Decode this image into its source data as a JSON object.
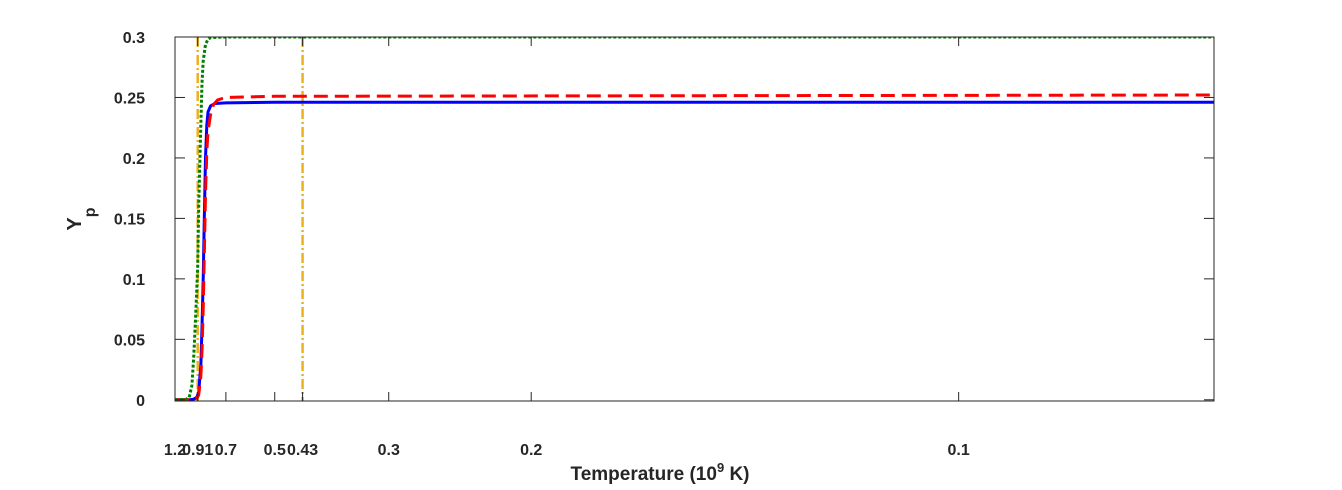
{
  "chart_data": {
    "type": "line",
    "xlabel": {
      "prefix": "Temperature (10",
      "sup": "9",
      "suffix": " K)"
    },
    "ylabel": {
      "main": "Y",
      "sub": "p"
    },
    "x_axis_scale": "reciprocal (axis increases with 1/T; tick labels show T)",
    "x_range_T": [
      1.2,
      0.077
    ],
    "ylim": [
      -0.001,
      0.3
    ],
    "x_ticks": [
      "1.2",
      "0.91",
      "0.7",
      "0.5",
      "0.43",
      "0.3",
      "0.2",
      "0.1"
    ],
    "y_ticks": [
      "0",
      "0.05",
      "0.1",
      "0.15",
      "0.2",
      "0.25",
      "0.3"
    ],
    "grid": false,
    "legend": "none",
    "series": [
      {
        "style": "solid",
        "color": "#0000ff",
        "points": [
          [
            1.2,
            0
          ],
          [
            1.0,
            0
          ],
          [
            0.95,
            0.0005
          ],
          [
            0.92,
            0.002
          ],
          [
            0.9,
            0.006
          ],
          [
            0.88,
            0.03
          ],
          [
            0.87,
            0.06
          ],
          [
            0.86,
            0.1
          ],
          [
            0.85,
            0.15
          ],
          [
            0.84,
            0.2
          ],
          [
            0.83,
            0.227
          ],
          [
            0.82,
            0.238
          ],
          [
            0.8,
            0.243
          ],
          [
            0.77,
            0.245
          ],
          [
            0.7,
            0.2455
          ],
          [
            0.5,
            0.246
          ],
          [
            0.077,
            0.246
          ]
        ]
      },
      {
        "style": "dashed",
        "color": "#ff0000",
        "points": [
          [
            1.2,
            0
          ],
          [
            1.0,
            0
          ],
          [
            0.95,
            0.0003
          ],
          [
            0.92,
            0.001
          ],
          [
            0.9,
            0.004
          ],
          [
            0.88,
            0.02
          ],
          [
            0.87,
            0.04
          ],
          [
            0.86,
            0.075
          ],
          [
            0.85,
            0.12
          ],
          [
            0.84,
            0.17
          ],
          [
            0.83,
            0.205
          ],
          [
            0.82,
            0.222
          ],
          [
            0.8,
            0.236
          ],
          [
            0.78,
            0.244
          ],
          [
            0.75,
            0.248
          ],
          [
            0.7,
            0.25
          ],
          [
            0.5,
            0.251
          ],
          [
            0.077,
            0.252
          ]
        ]
      },
      {
        "style": "dotted",
        "color": "#008000",
        "points": [
          [
            1.2,
            0
          ],
          [
            1.05,
            0
          ],
          [
            1.0,
            0.002
          ],
          [
            0.97,
            0.012
          ],
          [
            0.95,
            0.035
          ],
          [
            0.93,
            0.07
          ],
          [
            0.91,
            0.11
          ],
          [
            0.9,
            0.16
          ],
          [
            0.88,
            0.23
          ],
          [
            0.87,
            0.262
          ],
          [
            0.86,
            0.28
          ],
          [
            0.84,
            0.294
          ],
          [
            0.82,
            0.298
          ],
          [
            0.8,
            0.2995
          ],
          [
            0.7,
            0.3
          ],
          [
            0.077,
            0.3
          ]
        ]
      }
    ],
    "vertical_lines": [
      {
        "x": 0.91,
        "style": "dash-dot",
        "color": "#edb120"
      },
      {
        "x": 0.43,
        "style": "dash-dot",
        "color": "#edb120"
      }
    ]
  }
}
